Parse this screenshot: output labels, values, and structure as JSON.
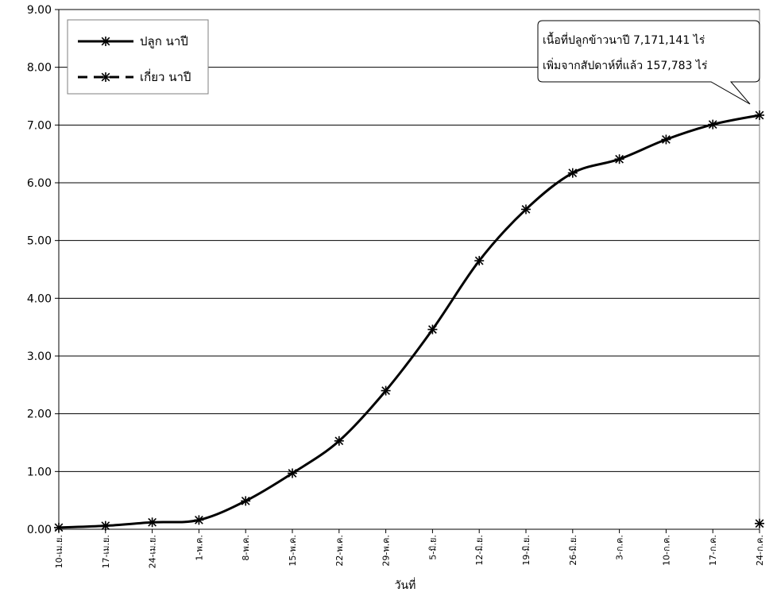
{
  "chart_data": {
    "type": "line",
    "title": "",
    "xlabel": "วันที่",
    "ylabel": "",
    "ylim": [
      0,
      9
    ],
    "y_ticks": [
      "0.00",
      "1.00",
      "2.00",
      "3.00",
      "4.00",
      "5.00",
      "6.00",
      "7.00",
      "8.00",
      "9.00"
    ],
    "grid": "horizontal",
    "legend_position": "top-left",
    "categories": [
      "10-เม.ย.",
      "17-เม.ย.",
      "24-เม.ย.",
      "1-พ.ค.",
      "8-พ.ค.",
      "15-พ.ค.",
      "22-พ.ค.",
      "29-พ.ค.",
      "5-มิ.ย.",
      "12-มิ.ย.",
      "19-มิ.ย.",
      "26-มิ.ย.",
      "3-ก.ค.",
      "10-ก.ค.",
      "17-ก.ค.",
      "24-ก.ค."
    ],
    "series": [
      {
        "name": "ปลูก นาปี",
        "line_style": "solid",
        "marker": "asterisk",
        "color": "#000000",
        "values": [
          0.03,
          0.06,
          0.12,
          0.16,
          0.49,
          0.97,
          1.53,
          2.4,
          3.46,
          4.65,
          5.54,
          6.17,
          6.41,
          6.75,
          7.01,
          7.17
        ]
      },
      {
        "name": "เกี่ยว นาปี",
        "line_style": "dashed",
        "marker": "asterisk",
        "color": "#000000",
        "values": [
          null,
          null,
          null,
          null,
          null,
          null,
          null,
          null,
          null,
          null,
          null,
          null,
          null,
          null,
          null,
          0.1
        ]
      }
    ],
    "annotation": {
      "lines": [
        "เนื้อที่ปลูกข้าวนาปี 7,171,141 ไร่",
        "เพิ่มจากสัปดาห์ที่แล้ว 157,783 ไร่"
      ]
    }
  }
}
